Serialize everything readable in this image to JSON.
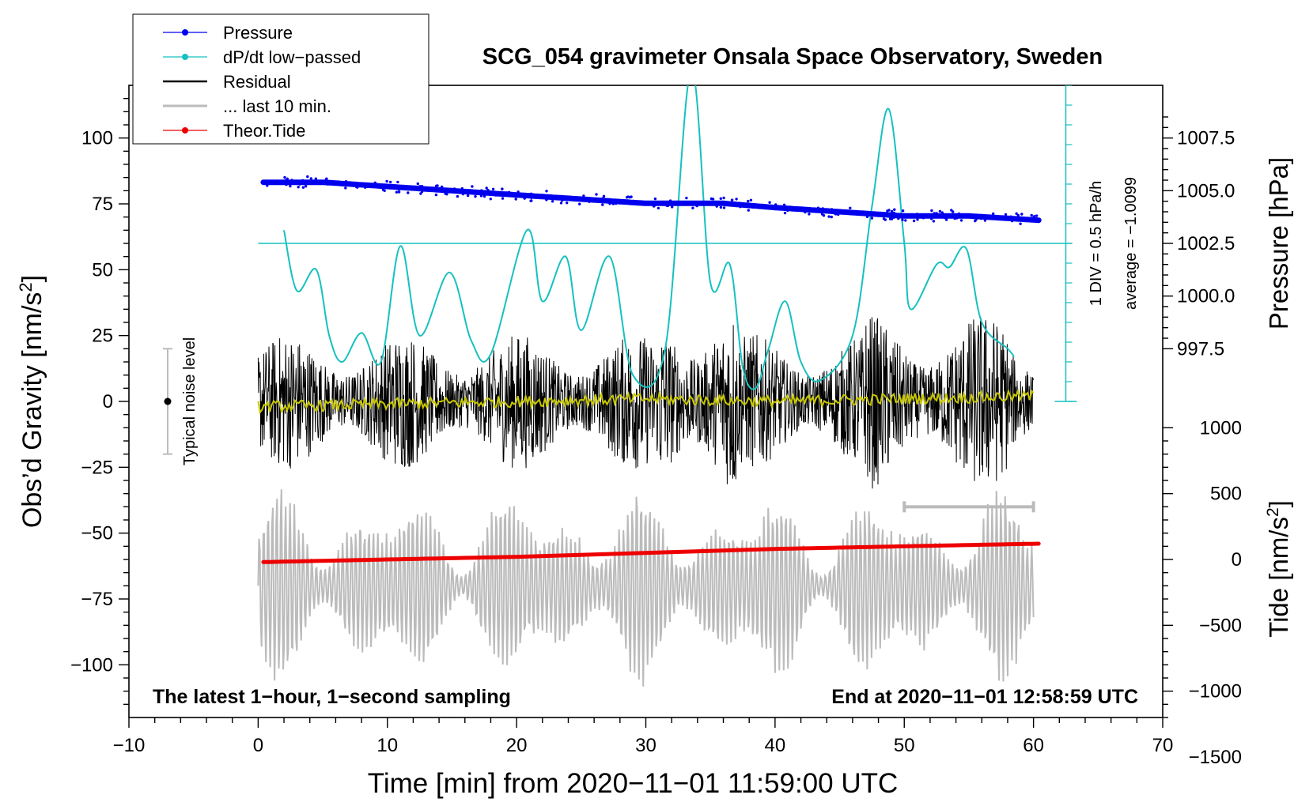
{
  "chart_data": {
    "type": "line",
    "title": "SCG_054 gravimeter Onsala Space Observatory, Sweden",
    "xlabel": "Time [min] from 2020−11−01 11:59:00 UTC",
    "ylabel_left": "Obs’d Gravity [nm/s",
    "ylabel_left_sup": "2",
    "ylabel_left_tail": "]",
    "ylabel_right_pressure": "Pressure [hPa]",
    "ylabel_right_tide": "Tide [nm/s",
    "ylabel_right_tide_sup": "2",
    "ylabel_right_tide_tail": "]",
    "xlim": [
      -10,
      70
    ],
    "ylim_left": [
      -120,
      120
    ],
    "x_ticks": [
      -10,
      0,
      10,
      20,
      30,
      40,
      50,
      60,
      70
    ],
    "x_tick_labels": [
      "−10",
      "0",
      "10",
      "20",
      "30",
      "40",
      "50",
      "60",
      "70"
    ],
    "y_ticks_left": [
      100,
      75,
      50,
      25,
      0,
      -25,
      -50,
      -75,
      -100
    ],
    "y_tick_labels_left": [
      "100",
      "75",
      "50",
      "25",
      "0",
      "−25",
      "−50",
      "−75",
      "−100"
    ],
    "pressure_axis": {
      "ticks": [
        1007.5,
        1005.0,
        1002.5,
        1000.0,
        997.5
      ],
      "tick_labels": [
        "1007.5",
        "1005.0",
        "1002.5",
        "1000.0",
        "997.5"
      ],
      "map": {
        "p_ref": 1005.0,
        "g_ref": 80,
        "g_per_hPa": 8
      }
    },
    "tide_axis": {
      "ticks": [
        1000,
        500,
        0,
        -500,
        -1000,
        -1500
      ],
      "tick_labels": [
        "1000",
        "500",
        "0",
        "−500",
        "−1000",
        "−1500"
      ],
      "map": {
        "t_ref": 0,
        "g_ref": -60,
        "g_per_unit": 0.05
      }
    },
    "legend": [
      {
        "label": "Pressure",
        "color": "#0000ee",
        "marker": true
      },
      {
        "label": "dP/dt low−passed",
        "color": "#17c0c0",
        "marker": true
      },
      {
        "label": "Residual",
        "color": "#000000",
        "marker": false
      },
      {
        "label": "... last 10 min.",
        "color": "#bbbbbb",
        "marker": false
      },
      {
        "label": "Theor.Tide",
        "color": "#ee0000",
        "marker": true
      }
    ],
    "legend_position": "top-left",
    "annotations": {
      "bottom_left": "The latest 1−hour, 1−second sampling",
      "bottom_right": "End at 2020−11−01 12:58:59 UTC",
      "noise_label": "Typical noise level",
      "dpdt_scale": "1 DIV = 0.5 hPa/h",
      "dpdt_average": "average = −1.0099"
    },
    "noise_bar": {
      "x": -7,
      "y_low": -20,
      "y_high": 20,
      "y_center": 0
    },
    "dpdt_scale_bar": {
      "x": 62.5,
      "y_low": 0,
      "y_high": 120,
      "div_step": 7.5
    },
    "dpdt_reference_line": {
      "y": 60,
      "x_start": 0,
      "x_end": 63
    },
    "last10_marker": {
      "x_start": 50,
      "x_end": 60,
      "y": -40
    },
    "series": [
      {
        "name": "Pressure",
        "color": "#0000ee",
        "x": [
          0.4,
          5,
          10,
          15,
          20,
          25,
          30,
          33,
          36,
          40,
          45,
          50,
          55,
          60.4
        ],
        "values": [
          1005.4,
          1005.4,
          1005.2,
          1005.0,
          1004.8,
          1004.6,
          1004.4,
          1004.4,
          1004.4,
          1004.2,
          1004.0,
          1003.8,
          1003.8,
          1003.6
        ]
      },
      {
        "name": "dP/dt low-passed",
        "color": "#17c0c0",
        "x": [
          2,
          3,
          4.5,
          5.5,
          6.5,
          8,
          9.5,
          11,
          12.5,
          14.8,
          16.5,
          18,
          20.8,
          22,
          23.8,
          25,
          27.2,
          29,
          31.5,
          33.5,
          35,
          36.5,
          37.5,
          38.5,
          39.5,
          40.8,
          42,
          43.5,
          46,
          47.5,
          48.8,
          50,
          50.5,
          52.5,
          53.5,
          54.8,
          56,
          58,
          58.5
        ],
        "values": [
          65,
          42,
          50,
          25,
          15,
          26,
          15,
          59,
          25,
          49,
          23,
          18,
          65,
          38,
          55,
          27,
          55,
          10,
          20,
          126,
          45,
          52,
          13,
          5,
          20,
          38,
          15,
          8,
          25,
          74,
          111,
          60,
          35,
          52,
          51,
          58,
          30,
          20,
          17
        ]
      },
      {
        "name": "Residual",
        "color": "#000000",
        "x_start": 0,
        "x_end": 60,
        "amplitude": 40
      },
      {
        "name": "Residual smoothed",
        "color": "#c8c800",
        "x": [
          0,
          10,
          20,
          30,
          40,
          50,
          60
        ],
        "values": [
          -2,
          -1,
          0,
          1,
          0,
          1,
          2
        ]
      },
      {
        "name": "... last 10 min.",
        "color": "#bbbbbb",
        "x_start": 0,
        "x_end": 60,
        "center": -70,
        "amplitude": 40
      },
      {
        "name": "Theor.Tide",
        "color": "#ee0000",
        "x": [
          0.4,
          10,
          20,
          30,
          40,
          50,
          60.4
        ],
        "values": [
          -20,
          0,
          20,
          50,
          80,
          100,
          120
        ]
      }
    ]
  }
}
